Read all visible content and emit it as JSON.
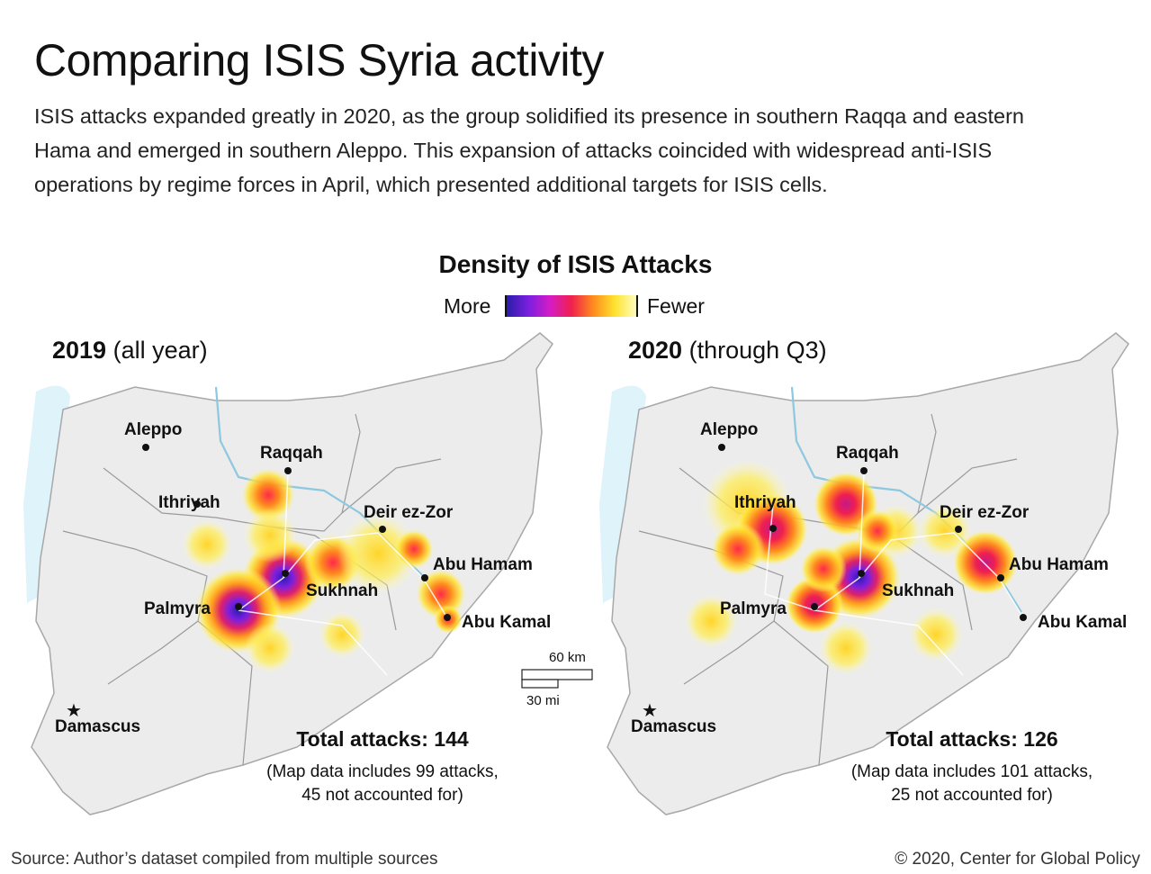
{
  "header": {
    "title": "Comparing ISIS Syria activity",
    "subtitle": "ISIS attacks expanded greatly in 2020, as the group solidified its presence in southern Raqqa and eastern Hama and emerged in southern Aleppo. This expansion of attacks coincided with widespread anti-ISIS operations by regime forces in April, which presented additional targets for ISIS cells."
  },
  "legend": {
    "title": "Density of ISIS Attacks",
    "more_label": "More",
    "fewer_label": "Fewer",
    "gradient": [
      "#2a1ea8",
      "#7a1fe0",
      "#d41cc5",
      "#f0204e",
      "#ff8a1e",
      "#ffe22e",
      "#fffec0"
    ]
  },
  "maps": [
    {
      "year": "2019",
      "period": "(all year)",
      "cities": [
        "Aleppo",
        "Raqqah",
        "Ithriyah",
        "Deir ez-Zor",
        "Abu Hamam",
        "Sukhnah",
        "Palmyra",
        "Abu Kamal",
        "Damascus"
      ],
      "total_label": "Total attacks: 144",
      "note_line1": "(Map data includes 99 attacks,",
      "note_line2": "45 not accounted for)"
    },
    {
      "year": "2020",
      "period": "(through Q3)",
      "cities": [
        "Aleppo",
        "Raqqah",
        "Ithriyah",
        "Deir ez-Zor",
        "Abu Hamam",
        "Sukhnah",
        "Palmyra",
        "Abu Kamal",
        "Damascus"
      ],
      "total_label": "Total attacks: 126",
      "note_line1": "(Map data includes 101 attacks,",
      "note_line2": "25 not accounted for)"
    }
  ],
  "scale": {
    "km": "60 km",
    "mi": "30 mi"
  },
  "footer": {
    "source": "Source: Author’s dataset compiled from multiple sources",
    "copyright": "© 2020, Center for Global Policy"
  }
}
